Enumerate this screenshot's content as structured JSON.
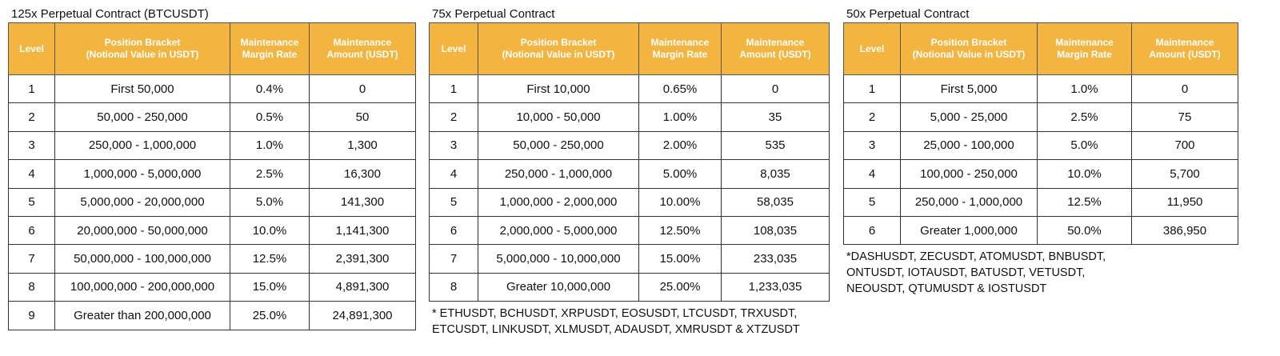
{
  "tables": [
    {
      "title": "125x Perpetual Contract (BTCUSDT)",
      "headers": [
        "Level",
        "Position Bracket\n(Notional Value in USDT)",
        "Maintenance\nMargin Rate",
        "Maintenance\nAmount (USDT)"
      ],
      "rows": [
        [
          "1",
          "First 50,000",
          "0.4%",
          "0"
        ],
        [
          "2",
          "50,000 - 250,000",
          "0.5%",
          "50"
        ],
        [
          "3",
          "250,000 - 1,000,000",
          "1.0%",
          "1,300"
        ],
        [
          "4",
          "1,000,000 - 5,000,000",
          "2.5%",
          "16,300"
        ],
        [
          "5",
          "5,000,000 - 20,000,000",
          "5.0%",
          "141,300"
        ],
        [
          "6",
          "20,000,000 - 50,000,000",
          "10.0%",
          "1,141,300"
        ],
        [
          "7",
          "50,000,000 - 100,000,000",
          "12.5%",
          "2,391,300"
        ],
        [
          "8",
          "100,000,000 - 200,000,000",
          "15.0%",
          "4,891,300"
        ],
        [
          "9",
          "Greater than 200,000,000",
          "25.0%",
          "24,891,300"
        ]
      ],
      "footnote": ""
    },
    {
      "title": "75x Perpetual Contract",
      "headers": [
        "Level",
        "Position Bracket\n(Notional Value in USDT)",
        "Maintenance\nMargin Rate",
        "Maintenance\nAmount (USDT)"
      ],
      "rows": [
        [
          "1",
          "First 10,000",
          "0.65%",
          "0"
        ],
        [
          "2",
          "10,000 - 50,000",
          "1.00%",
          "35"
        ],
        [
          "3",
          "50,000 - 250,000",
          "2.00%",
          "535"
        ],
        [
          "4",
          "250,000 - 1,000,000",
          "5.00%",
          "8,035"
        ],
        [
          "5",
          "1,000,000 - 2,000,000",
          "10.00%",
          "58,035"
        ],
        [
          "6",
          "2,000,000 - 5,000,000",
          "12.50%",
          "108,035"
        ],
        [
          "7",
          "5,000,000 - 10,000,000",
          "15.00%",
          "233,035"
        ],
        [
          "8",
          "Greater 10,000,000",
          "25.00%",
          "1,233,035"
        ]
      ],
      "footnote": "* ETHUSDT, BCHUSDT,  XRPUSDT, EOSUSDT, LTCUSDT, TRXUSDT,\nETCUSDT, LINKUSDT, XLMUSDT, ADAUSDT, XMRUSDT & XTZUSDT"
    },
    {
      "title": "50x Perpetual Contract",
      "headers": [
        "Level",
        "Position Bracket\n(Notional Value in USDT)",
        "Maintenance\nMargin Rate",
        "Maintenance\nAmount (USDT)"
      ],
      "rows": [
        [
          "1",
          "First 5,000",
          "1.0%",
          "0"
        ],
        [
          "2",
          "5,000 - 25,000",
          "2.5%",
          "75"
        ],
        [
          "3",
          "25,000 - 100,000",
          "5.0%",
          "700"
        ],
        [
          "4",
          "100,000 - 250,000",
          "10.0%",
          "5,700"
        ],
        [
          "5",
          "250,000 - 1,000,000",
          "12.5%",
          "11,950"
        ],
        [
          "6",
          "Greater 1,000,000",
          "50.0%",
          "386,950"
        ]
      ],
      "footnote": "*DASHUSDT, ZECUSDT, ATOMUSDT, BNBUSDT,\nONTUSDT, IOTAUSDT, BATUSDT, VETUSDT,\nNEOUSDT, QTUMUSDT & IOSTUSDT"
    }
  ]
}
